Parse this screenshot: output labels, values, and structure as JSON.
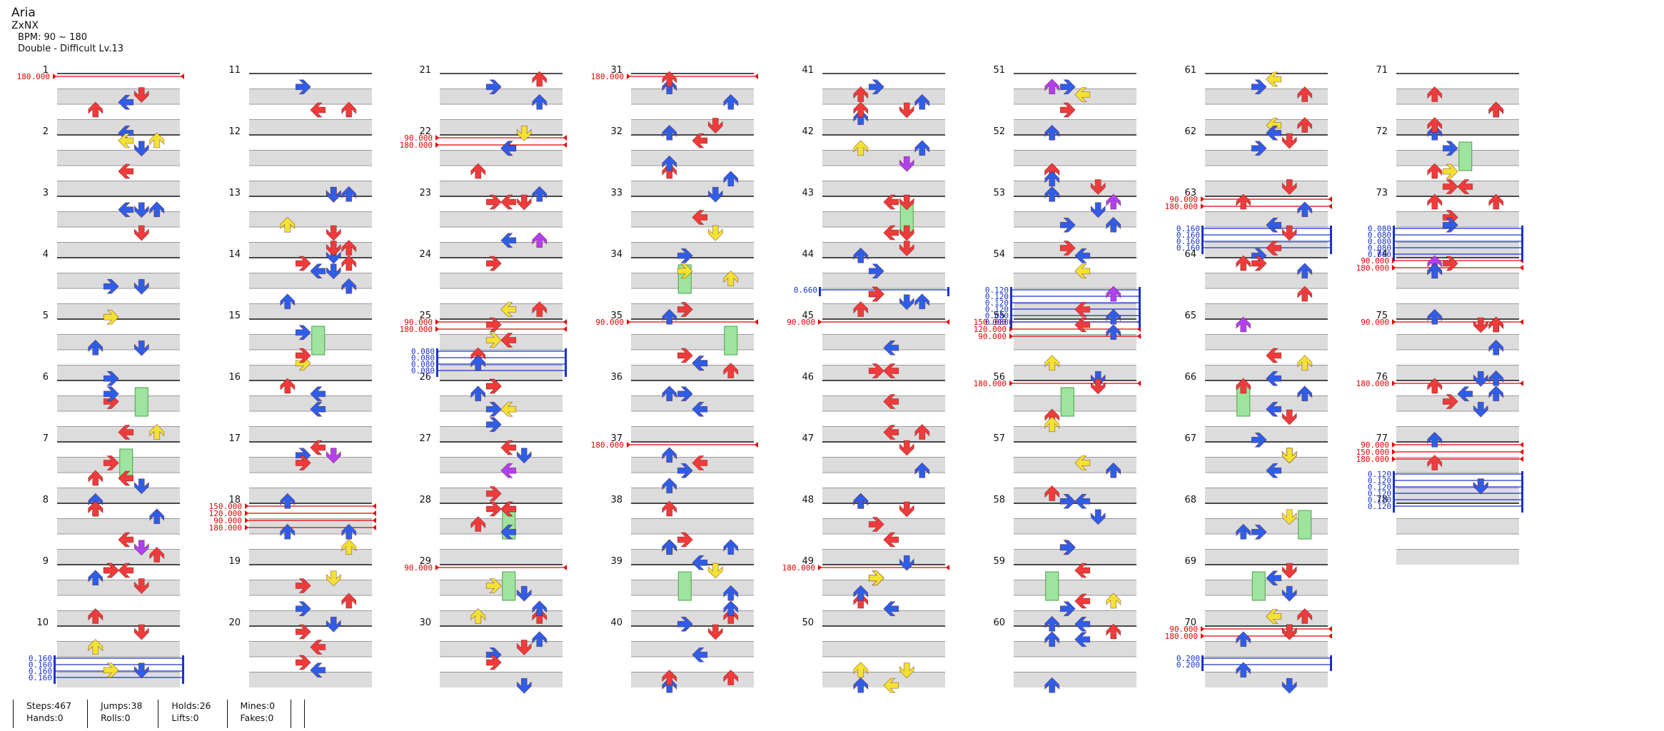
{
  "song": {
    "title": "Aria",
    "artist": "ZxNX",
    "bpm_line": "BPM: 90 ~ 180",
    "difficulty_line": "Double - Difficult Lv.13"
  },
  "chart_data": {
    "type": "step-chart",
    "measures_total": 78,
    "measure_numbers": [
      "1",
      "2",
      "3",
      "4",
      "5",
      "6",
      "7",
      "8",
      "9",
      "10",
      "11",
      "12",
      "13",
      "14",
      "15",
      "16",
      "17",
      "18",
      "19",
      "20",
      "21",
      "22",
      "23",
      "24",
      "25",
      "26",
      "27",
      "28",
      "29",
      "30",
      "31",
      "32",
      "33",
      "34",
      "35",
      "36",
      "37",
      "38",
      "39",
      "40",
      "41",
      "42",
      "43",
      "44",
      "45",
      "46",
      "47",
      "48",
      "49",
      "50",
      "51",
      "52",
      "53",
      "54",
      "55",
      "56",
      "57",
      "58",
      "59",
      "60",
      "61",
      "62",
      "63",
      "64",
      "65",
      "66",
      "67",
      "68",
      "69",
      "70",
      "71",
      "72",
      "73",
      "74",
      "75",
      "76",
      "77",
      "78"
    ],
    "bpm_changes": [
      {
        "measure": 1,
        "bpm": "180.000"
      },
      {
        "measure": 18,
        "bpm": "150.000"
      },
      {
        "measure": 18,
        "bpm": "120.000"
      },
      {
        "measure": 18,
        "bpm": "90.000"
      },
      {
        "measure": 18,
        "bpm": "180.000"
      },
      {
        "measure": 22,
        "bpm": "90.000"
      },
      {
        "measure": 22,
        "bpm": "180.000"
      },
      {
        "measure": 25,
        "bpm": "90.000"
      },
      {
        "measure": 25,
        "bpm": "180.000"
      },
      {
        "measure": 29,
        "bpm": "90.000"
      },
      {
        "measure": 31,
        "bpm": "180.000"
      },
      {
        "measure": 35,
        "bpm": "90.000"
      },
      {
        "measure": 37,
        "bpm": "180.000"
      },
      {
        "measure": 45,
        "bpm": "90.000"
      },
      {
        "measure": 49,
        "bpm": "180.000"
      },
      {
        "measure": 55,
        "bpm": "150.000"
      },
      {
        "measure": 55,
        "bpm": "120.000"
      },
      {
        "measure": 55,
        "bpm": "90.000"
      },
      {
        "measure": 56,
        "bpm": "180.000"
      },
      {
        "measure": 63,
        "bpm": "90.000"
      },
      {
        "measure": 63,
        "bpm": "180.000"
      },
      {
        "measure": 70,
        "bpm": "90.000"
      },
      {
        "measure": 70,
        "bpm": "180.000"
      },
      {
        "measure": 74,
        "bpm": "90.000"
      },
      {
        "measure": 74,
        "bpm": "180.000"
      },
      {
        "measure": 75,
        "bpm": "90.000"
      },
      {
        "measure": 76,
        "bpm": "180.000"
      },
      {
        "measure": 77,
        "bpm": "90.000"
      },
      {
        "measure": 77,
        "bpm": "150.000"
      },
      {
        "measure": 77,
        "bpm": "180.000"
      }
    ],
    "stops": [
      {
        "measure": 10,
        "values": [
          "0.160",
          "0.160",
          "0.160",
          "0.160"
        ]
      },
      {
        "measure": 25,
        "values": [
          "0.080",
          "0.080",
          "0.080",
          "0.080"
        ]
      },
      {
        "measure": 44,
        "values": [
          "0.660"
        ]
      },
      {
        "measure": 54,
        "values": [
          "0.120",
          "0.120",
          "0.120",
          "0.120",
          "0.080",
          "0.080"
        ]
      },
      {
        "measure": 63,
        "values": [
          "0.160",
          "0.160",
          "0.160",
          "0.160"
        ]
      },
      {
        "measure": 70,
        "values": [
          "0.200",
          "0.200"
        ]
      },
      {
        "measure": 73,
        "values": [
          "0.080",
          "0.080",
          "0.080",
          "0.080",
          "0.080"
        ]
      },
      {
        "measure": 77,
        "values": [
          "0.120",
          "0.120",
          "0.120",
          "0.120",
          "0.120",
          "0.120"
        ]
      }
    ],
    "note_colors": {
      "fourth": "#ef3b3b",
      "eighth": "#2e5ee8",
      "sixteenth": "#f2e233",
      "twelfth": "#b040f0",
      "twentyfourth": "#f08a30",
      "hold": "#9ee49e",
      "bpm": "#e60000",
      "stop": "#1a33cc"
    }
  },
  "stats": {
    "steps": "Steps:467",
    "hands": "Hands:0",
    "jumps": "Jumps:38",
    "rolls": "Rolls:0",
    "holds": "Holds:26",
    "lifts": "Lifts:0",
    "mines": "Mines:0",
    "fakes": "Fakes:0"
  }
}
